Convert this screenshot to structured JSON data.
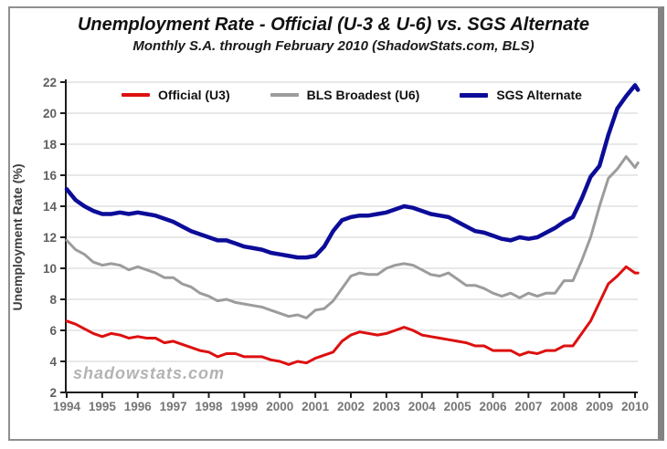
{
  "header": {
    "title": "Unemployment Rate - Official (U-3 & U-6) vs. SGS Alternate",
    "subtitle": "Monthly S.A. through February 2010 (ShadowStats.com, BLS)"
  },
  "watermark": "shadowstats.com",
  "chart_data": {
    "type": "line",
    "title": "Unemployment Rate - Official (U-3 & U-6) vs. SGS Alternate",
    "subtitle": "Monthly S.A. through February 2010 (ShadowStats.com, BLS)",
    "xlabel": "",
    "ylabel": "Unemployment Rate (%)",
    "ylim": [
      2,
      22
    ],
    "xlim": [
      1994,
      2010.17
    ],
    "y_ticks": [
      2,
      4,
      6,
      8,
      10,
      12,
      14,
      16,
      18,
      20,
      22
    ],
    "x_ticks": [
      1994,
      1995,
      1996,
      1997,
      1998,
      1999,
      2000,
      2001,
      2002,
      2003,
      2004,
      2005,
      2006,
      2007,
      2008,
      2009,
      2010
    ],
    "grid": true,
    "legend_position": "top-center",
    "axis_color": "#1c1c1c",
    "grid_color": "#dadada",
    "tick_label_color": "#6e6e6e",
    "x": [
      1994,
      1994.25,
      1994.5,
      1994.75,
      1995,
      1995.25,
      1995.5,
      1995.75,
      1996,
      1996.25,
      1996.5,
      1996.75,
      1997,
      1997.25,
      1997.5,
      1997.75,
      1998,
      1998.25,
      1998.5,
      1998.75,
      1999,
      1999.25,
      1999.5,
      1999.75,
      2000,
      2000.25,
      2000.5,
      2000.75,
      2001,
      2001.25,
      2001.5,
      2001.75,
      2002,
      2002.25,
      2002.5,
      2002.75,
      2003,
      2003.25,
      2003.5,
      2003.75,
      2004,
      2004.25,
      2004.5,
      2004.75,
      2005,
      2005.25,
      2005.5,
      2005.75,
      2006,
      2006.25,
      2006.5,
      2006.75,
      2007,
      2007.25,
      2007.5,
      2007.75,
      2008,
      2008.25,
      2008.5,
      2008.75,
      2009,
      2009.25,
      2009.5,
      2009.75,
      2010,
      2010.083
    ],
    "series": [
      {
        "name": "Official (U3)",
        "color": "#dd1010",
        "thickness": 3,
        "values": [
          6.6,
          6.4,
          6.1,
          5.8,
          5.6,
          5.8,
          5.7,
          5.5,
          5.6,
          5.5,
          5.5,
          5.2,
          5.3,
          5.1,
          4.9,
          4.7,
          4.6,
          4.3,
          4.5,
          4.5,
          4.3,
          4.3,
          4.3,
          4.1,
          4.0,
          3.8,
          4.0,
          3.9,
          4.2,
          4.4,
          4.6,
          5.3,
          5.7,
          5.9,
          5.8,
          5.7,
          5.8,
          6.0,
          6.2,
          6.0,
          5.7,
          5.6,
          5.5,
          5.4,
          5.3,
          5.2,
          5.0,
          5.0,
          4.7,
          4.7,
          4.7,
          4.4,
          4.6,
          4.5,
          4.7,
          4.7,
          5.0,
          5.0,
          5.8,
          6.6,
          7.8,
          9.0,
          9.5,
          10.1,
          9.7,
          9.7
        ]
      },
      {
        "name": "BLS Broadest (U6)",
        "color": "#9c9c9c",
        "thickness": 3,
        "values": [
          11.8,
          11.2,
          10.9,
          10.4,
          10.2,
          10.3,
          10.2,
          9.9,
          10.1,
          9.9,
          9.7,
          9.4,
          9.4,
          9.0,
          8.8,
          8.4,
          8.2,
          7.9,
          8.0,
          7.8,
          7.7,
          7.6,
          7.5,
          7.3,
          7.1,
          6.9,
          7.0,
          6.8,
          7.3,
          7.4,
          7.9,
          8.7,
          9.5,
          9.7,
          9.6,
          9.6,
          10.0,
          10.2,
          10.3,
          10.2,
          9.9,
          9.6,
          9.5,
          9.7,
          9.3,
          8.9,
          8.9,
          8.7,
          8.4,
          8.2,
          8.4,
          8.1,
          8.4,
          8.2,
          8.4,
          8.4,
          9.2,
          9.2,
          10.5,
          12.0,
          14.0,
          15.8,
          16.4,
          17.2,
          16.5,
          16.8
        ]
      },
      {
        "name": "SGS Alternate",
        "color": "#0c0c99",
        "thickness": 4.5,
        "values": [
          15.1,
          14.4,
          14.0,
          13.7,
          13.5,
          13.5,
          13.6,
          13.5,
          13.6,
          13.5,
          13.4,
          13.2,
          13.0,
          12.7,
          12.4,
          12.2,
          12.0,
          11.8,
          11.8,
          11.6,
          11.4,
          11.3,
          11.2,
          11.0,
          10.9,
          10.8,
          10.7,
          10.7,
          10.8,
          11.4,
          12.4,
          13.1,
          13.3,
          13.4,
          13.4,
          13.5,
          13.6,
          13.8,
          14.0,
          13.9,
          13.7,
          13.5,
          13.4,
          13.3,
          13.0,
          12.7,
          12.4,
          12.3,
          12.1,
          11.9,
          11.8,
          12.0,
          11.9,
          12.0,
          12.3,
          12.6,
          13.0,
          13.3,
          14.5,
          15.9,
          16.6,
          18.6,
          20.3,
          21.1,
          21.8,
          21.5
        ]
      }
    ]
  }
}
